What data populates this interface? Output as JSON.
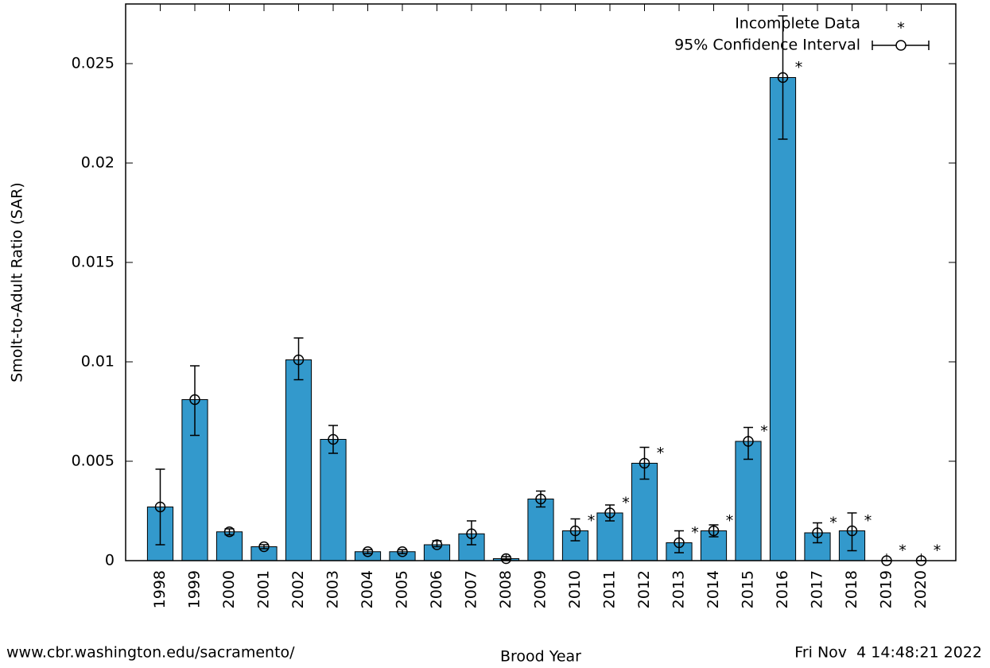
{
  "chart_data": {
    "type": "bar",
    "x_label": "Brood Year",
    "y_label": "Smolt-to-Adult Ratio (SAR)",
    "footer_left": "www.cbr.washington.edu/sacramento/",
    "footer_right": "Fri Nov  4 14:48:21 2022",
    "categories": [
      "1998",
      "1999",
      "2000",
      "2001",
      "2002",
      "2003",
      "2004",
      "2005",
      "2006",
      "2007",
      "2008",
      "2009",
      "2010",
      "2011",
      "2012",
      "2013",
      "2014",
      "2015",
      "2016",
      "2017",
      "2018",
      "2019",
      "2020"
    ],
    "series": [
      {
        "name": "95% Confidence Interval",
        "color": "#3399cc",
        "values": [
          0.0027,
          0.0081,
          0.00145,
          0.0007,
          0.0101,
          0.0061,
          0.00045,
          0.00045,
          0.0008,
          0.00135,
          0.0001,
          0.0031,
          0.0015,
          0.0024,
          0.0049,
          0.0009,
          0.0015,
          0.006,
          0.0243,
          0.0014,
          0.0015,
          0,
          0
        ],
        "lower": [
          0.0008,
          0.0063,
          0.0013,
          0.0006,
          0.0091,
          0.0054,
          0.00035,
          0.00035,
          0.0007,
          0.0008,
          5e-05,
          0.0027,
          0.001,
          0.002,
          0.0041,
          0.0004,
          0.0012,
          0.0051,
          0.0212,
          0.0009,
          0.0005,
          0,
          0
        ],
        "upper": [
          0.0046,
          0.0098,
          0.0016,
          0.0008,
          0.0112,
          0.0068,
          0.00055,
          0.00055,
          0.001,
          0.002,
          0.0002,
          0.0035,
          0.0021,
          0.0028,
          0.0057,
          0.0015,
          0.0018,
          0.0067,
          0.0274,
          0.0019,
          0.0024,
          0,
          0
        ]
      }
    ],
    "incomplete": {
      "name": "Incomplete Data",
      "color": "#ff00ff",
      "flags": [
        false,
        false,
        false,
        false,
        false,
        false,
        false,
        false,
        false,
        false,
        false,
        false,
        true,
        true,
        true,
        true,
        true,
        true,
        true,
        true,
        true,
        true,
        true
      ]
    },
    "ylim": [
      0,
      0.028
    ],
    "yticks": [
      0,
      0.005,
      0.01,
      0.015,
      0.02,
      0.025
    ],
    "legend": "top-right"
  }
}
